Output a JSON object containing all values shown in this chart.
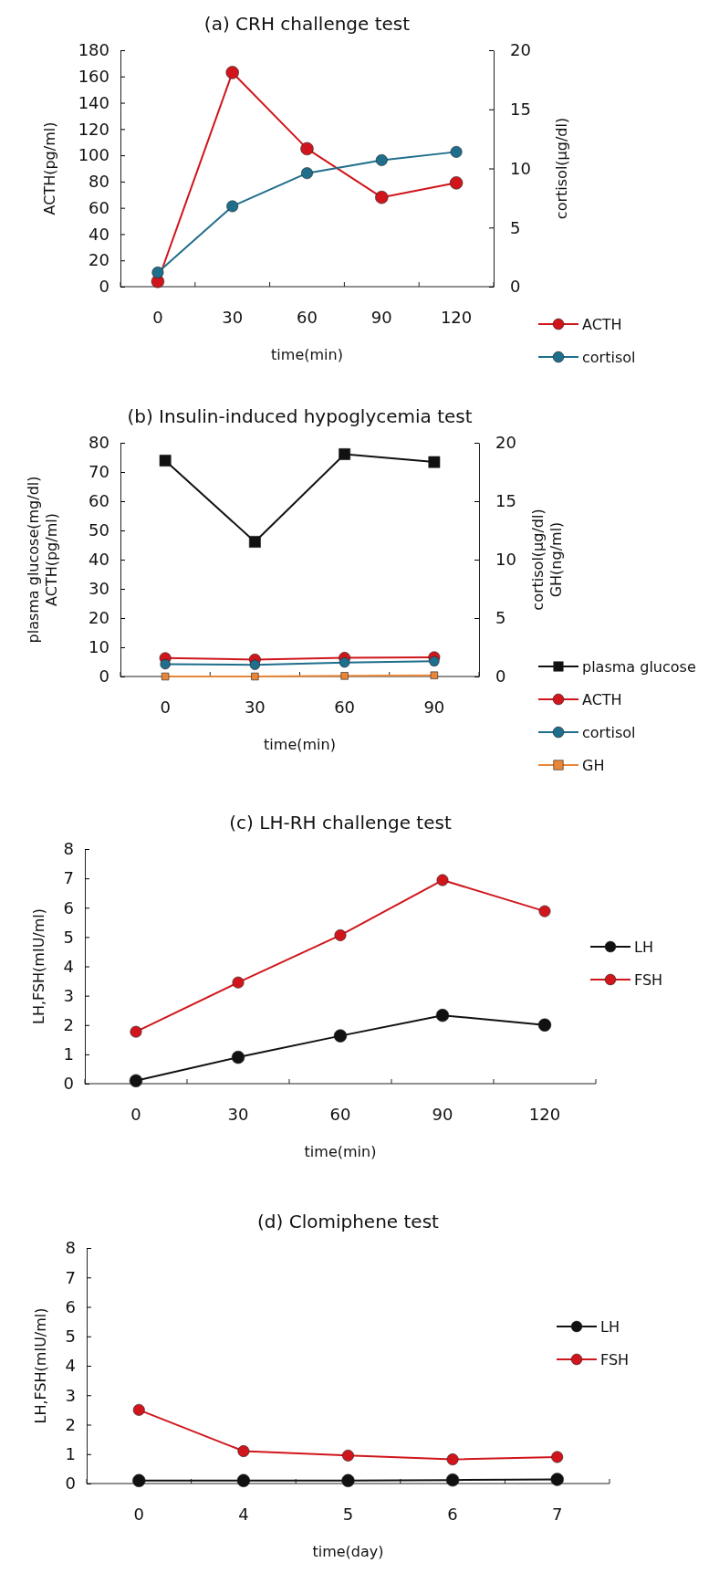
{
  "chart_data": [
    {
      "type": "line",
      "title": "(a) CRH challenge test",
      "xlabel": "time(min)",
      "ylabel": "ACTH(pg/ml)",
      "y2label": "cortisol(μg/dl)",
      "categories": [
        "0",
        "30",
        "60",
        "90",
        "120"
      ],
      "ylim": [
        0,
        180
      ],
      "yticks": [
        0,
        20,
        40,
        60,
        80,
        100,
        120,
        140,
        160,
        180
      ],
      "y2lim": [
        0,
        20
      ],
      "y2ticks": [
        0,
        5,
        10,
        15,
        20
      ],
      "legend": "bottom right",
      "marker": "circle",
      "series": [
        {
          "name": "ACTH",
          "color": "#d0161c",
          "values": [
            4,
            163,
            105,
            68,
            79
          ]
        },
        {
          "name": "cortisol",
          "color": "#1f6e8c",
          "axis": "y2",
          "values": [
            1.2,
            6.8,
            9.6,
            10.7,
            11.4
          ]
        }
      ]
    },
    {
      "type": "line",
      "title": "(b) Insulin-induced hypoglycemia test",
      "xlabel": "time(min)",
      "ylabel": "plasma glucose(mg/dl)\nACTH(pg/ml)",
      "y2label": "cortisol(μg/dl)\nGH(ng/ml)",
      "categories": [
        "0",
        "30",
        "60",
        "90"
      ],
      "ylim": [
        0,
        80
      ],
      "yticks": [
        0,
        10,
        20,
        30,
        40,
        50,
        60,
        70,
        80
      ],
      "y2lim": [
        0,
        20
      ],
      "y2ticks": [
        0,
        5,
        10,
        15,
        20
      ],
      "legend": "bottom right",
      "marker": "circle",
      "series": [
        {
          "name": "plasma glucose",
          "color": "#111111",
          "marker": "square",
          "values": [
            73.9,
            46.1,
            76.1,
            73.4
          ]
        },
        {
          "name": "ACTH",
          "color": "#d0161c",
          "values": [
            6.3,
            5.8,
            6.4,
            6.6
          ]
        },
        {
          "name": "cortisol",
          "color": "#1f6e8c",
          "axis": "y2",
          "values": [
            1.05,
            1.0,
            1.2,
            1.3
          ]
        },
        {
          "name": "GH",
          "color": "#e8873a",
          "axis": "y2",
          "marker": "square",
          "values": [
            0,
            0,
            0.05,
            0.1
          ]
        }
      ]
    },
    {
      "type": "line",
      "title": "(c) LH-RH challenge test",
      "xlabel": "time(min)",
      "ylabel": "LH,FSH(mIU/ml)",
      "categories": [
        "0",
        "30",
        "60",
        "90",
        "120"
      ],
      "ylim": [
        0,
        8
      ],
      "yticks": [
        0,
        1,
        2,
        3,
        4,
        5,
        6,
        7,
        8
      ],
      "legend": "right",
      "marker": "circle",
      "series": [
        {
          "name": "LH",
          "color": "#111111",
          "values": [
            0.1,
            0.9,
            1.63,
            2.33,
            2.0
          ]
        },
        {
          "name": "FSH",
          "color": "#d0161c",
          "values": [
            1.77,
            3.45,
            5.06,
            6.94,
            5.88
          ]
        }
      ]
    },
    {
      "type": "line",
      "title": "(d) Clomiphene test",
      "xlabel": "time(day)",
      "ylabel": "LH,FSH(mIU/ml)",
      "categories": [
        "0",
        "4",
        "5",
        "6",
        "7"
      ],
      "ylim": [
        0,
        8
      ],
      "yticks": [
        0,
        1,
        2,
        3,
        4,
        5,
        6,
        7,
        8
      ],
      "legend": "right",
      "marker": "circle",
      "series": [
        {
          "name": "LH",
          "color": "#111111",
          "values": [
            0.1,
            0.1,
            0.1,
            0.12,
            0.14
          ]
        },
        {
          "name": "FSH",
          "color": "#d0161c",
          "values": [
            2.5,
            1.1,
            0.95,
            0.82,
            0.9
          ]
        }
      ]
    }
  ]
}
